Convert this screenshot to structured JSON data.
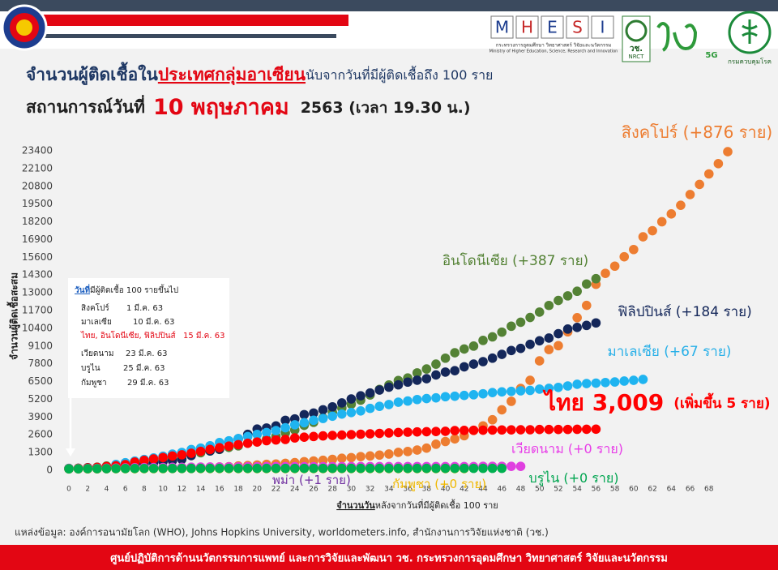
{
  "header": {
    "mhesi_letters": [
      "M",
      "H",
      "E",
      "S",
      "I"
    ],
    "mhesi_th": "กระทรวงการอุดมศึกษา วิทยาศาสตร์ วิจัยและนวัตกรรม",
    "mhesi_en": "Ministry of Higher Education, Science, Research and Innovation",
    "nrct_th": "วช.",
    "nrct_en": "NRCT",
    "fiveg": "5G",
    "ddc": "กรมควบคุมโรค"
  },
  "chart_data": {
    "type": "scatter",
    "title_parts": [
      "จำนวนผู้ติดเชื้อใน",
      "ประเทศกลุ่มอาเซียน",
      "นับจากวันที่มีผู้ติดเชื้อถึง 100 ราย"
    ],
    "subtitle_parts": [
      "สถานการณ์วันที่",
      "10 พฤษภาคม",
      "2563  (เวลา 19.30 น.)"
    ],
    "ylabel": "จำนวนผู้ติดเชื้อสะสม",
    "xlabel_parts": [
      "จำนวนวัน",
      "หลังจากวันที่มีผู้ติดเชื้อ 100 ราย"
    ],
    "x": [
      0,
      1,
      2,
      3,
      4,
      5,
      6,
      7,
      8,
      9,
      10,
      11,
      12,
      13,
      14,
      15,
      16,
      17,
      18,
      19,
      20,
      21,
      22,
      23,
      24,
      25,
      26,
      27,
      28,
      29,
      30,
      31,
      32,
      33,
      34,
      35,
      36,
      37,
      38,
      39,
      40,
      41,
      42,
      43,
      44,
      45,
      46,
      47,
      48,
      49,
      50,
      51,
      52,
      53,
      54,
      55,
      56,
      57,
      58,
      59,
      60,
      61,
      62,
      63,
      64,
      65,
      66,
      67,
      68,
      69,
      70
    ],
    "xlim": [
      0,
      70
    ],
    "xticks": [
      0,
      2,
      4,
      6,
      8,
      10,
      12,
      14,
      16,
      18,
      20,
      22,
      24,
      26,
      28,
      30,
      32,
      34,
      36,
      38,
      40,
      42,
      44,
      46,
      48,
      50,
      52,
      54,
      56,
      58,
      60,
      62,
      64,
      66,
      68
    ],
    "ylim": [
      0,
      23400
    ],
    "yticks": [
      0,
      1300,
      2600,
      3900,
      5200,
      6500,
      7800,
      9100,
      10400,
      11700,
      13000,
      14300,
      15600,
      16900,
      18200,
      19500,
      20800,
      22100,
      23400
    ],
    "grid": false,
    "series": [
      {
        "name": "สิงคโปร์ (+876 ราย)",
        "color": "#ed7d31",
        "values": [
          100,
          102,
          106,
          110,
          117,
          130,
          138,
          148,
          150,
          160,
          166,
          178,
          187,
          200,
          212,
          226,
          243,
          266,
          313,
          345,
          385,
          432,
          455,
          509,
          558,
          631,
          683,
          732,
          802,
          879,
          926,
          1000,
          1049,
          1114,
          1189,
          1309,
          1375,
          1481,
          1623,
          1910,
          2108,
          2299,
          2532,
          2918,
          3252,
          3699,
          4427,
          5050,
          5992,
          6588,
          8014,
          8842,
          9125,
          10141,
          11178,
          12075,
          13624,
          14423,
          14951,
          15641,
          16169,
          17101,
          17548,
          18205,
          18778,
          19410,
          20198,
          20939,
          21707,
          22460,
          23336
        ]
      },
      {
        "name": "อินโดนีเซีย (+387 ราย)",
        "color": "#548235",
        "values": [
          117,
          134,
          172,
          227,
          309,
          369,
          450,
          514,
          579,
          686,
          790,
          893,
          1046,
          1155,
          1285,
          1414,
          1528,
          1677,
          1790,
          1986,
          2092,
          2273,
          2491,
          2738,
          2956,
          3293,
          3512,
          3842,
          4241,
          4557,
          4839,
          5136,
          5516,
          5923,
          6248,
          6575,
          6760,
          7135,
          7418,
          7775,
          8211,
          8607,
          8882,
          9096,
          9511,
          9771,
          10118,
          10551,
          10843,
          11192,
          11587,
          12071,
          12438,
          12776,
          13112,
          13645,
          14032,
          null,
          null,
          null,
          null,
          null,
          null,
          null,
          null,
          null,
          null,
          null,
          null,
          null,
          null
        ]
      },
      {
        "name": "ฟิลิปปินส์ (+184 ราย)",
        "color": "#14275a",
        "values": [
          140,
          142,
          187,
          202,
          217,
          230,
          307,
          380,
          462,
          552,
          636,
          707,
          803,
          1075,
          1418,
          1418,
          1546,
          2084,
          2311,
          2633,
          3018,
          3094,
          3246,
          3660,
          3764,
          4076,
          4195,
          4428,
          4648,
          4932,
          5223,
          5453,
          5660,
          5878,
          6087,
          6259,
          6459,
          6599,
          6710,
          6981,
          7192,
          7294,
          7579,
          7777,
          7958,
          8212,
          8488,
          8772,
          8928,
          9223,
          9485,
          9684,
          10004,
          10343,
          10463,
          10610,
          10794,
          null,
          null,
          null,
          null,
          null,
          null,
          null,
          null,
          null,
          null,
          null,
          null,
          null,
          null
        ]
      },
      {
        "name": "มาเลเซีย (+67 ราย)",
        "color": "#1fb4f0",
        "values": [
          129,
          149,
          149,
          197,
          238,
          428,
          553,
          673,
          790,
          900,
          1030,
          1183,
          1306,
          1518,
          1624,
          1796,
          2031,
          2161,
          2320,
          2470,
          2626,
          2766,
          2908,
          3116,
          3333,
          3483,
          3662,
          3793,
          3963,
          4119,
          4228,
          4346,
          4530,
          4683,
          4817,
          4987,
          5072,
          5182,
          5251,
          5305,
          5389,
          5425,
          5482,
          5532,
          5603,
          5691,
          5742,
          5780,
          5820,
          5851,
          5945,
          6002,
          6071,
          6176,
          6298,
          6353,
          6383,
          6428,
          6467,
          6535,
          6589,
          6656,
          null,
          null,
          null,
          null,
          null,
          null,
          null,
          null,
          null
        ]
      },
      {
        "name": "ไทย 3,009",
        "note": "(เพิ่มขึ้น 5 ราย)",
        "color": "#ff0000",
        "values": [
          114,
          147,
          177,
          212,
          272,
          322,
          411,
          599,
          721,
          827,
          934,
          1045,
          1136,
          1245,
          1388,
          1524,
          1651,
          1771,
          1875,
          1978,
          2067,
          2169,
          2220,
          2258,
          2369,
          2423,
          2473,
          2518,
          2551,
          2579,
          2613,
          2643,
          2672,
          2700,
          2733,
          2765,
          2792,
          2811,
          2826,
          2839,
          2854,
          2907,
          2922,
          2931,
          2938,
          2947,
          2954,
          2960,
          2966,
          2969,
          2987,
          2988,
          2989,
          2992,
          3000,
          3004,
          3009,
          null,
          null,
          null,
          null,
          null,
          null,
          null,
          null,
          null,
          null,
          null,
          null,
          null,
          null
        ]
      },
      {
        "name": "พม่า (+1 ราย)",
        "color": "#7030a0",
        "values": [
          110,
          111,
          119,
          121,
          127,
          139,
          141,
          144,
          144,
          145,
          146,
          146,
          150,
          151,
          151,
          151,
          151,
          155,
          161,
          162,
          171,
          176,
          176,
          177,
          178,
          178,
          179,
          180,
          null,
          null,
          null,
          null,
          null,
          null,
          null,
          null,
          null,
          null,
          null,
          null,
          null,
          null,
          null,
          null,
          null,
          null,
          null,
          null,
          null,
          null,
          null,
          null,
          null,
          null,
          null,
          null,
          null,
          null,
          null,
          null,
          null,
          null,
          null,
          null,
          null,
          null,
          null,
          null,
          null,
          null,
          null
        ]
      },
      {
        "name": "เวียดนาม (+0 ราย)",
        "color": "#e040e0",
        "values": [
          113,
          123,
          134,
          141,
          153,
          163,
          174,
          188,
          194,
          203,
          207,
          218,
          222,
          227,
          237,
          240,
          245,
          249,
          251,
          255,
          257,
          262,
          265,
          266,
          267,
          268,
          268,
          268,
          268,
          270,
          270,
          270,
          270,
          270,
          270,
          270,
          271,
          271,
          271,
          271,
          271,
          271,
          271,
          271,
          288,
          288,
          288,
          288,
          288,
          null,
          null,
          null,
          null,
          null,
          null,
          null,
          null,
          null,
          null,
          null,
          null,
          null,
          null,
          null,
          null,
          null,
          null,
          null,
          null,
          null,
          null
        ]
      },
      {
        "name": "กัมพูชา (+0 ราย)",
        "color": "#ffc000",
        "values": [
          103,
          107,
          109,
          109,
          114,
          114,
          115,
          117,
          119,
          119,
          120,
          122,
          122,
          122,
          122,
          122,
          122,
          122,
          122,
          122,
          122,
          122,
          122,
          122,
          122,
          122,
          122,
          122,
          122,
          122,
          122,
          122,
          122,
          122,
          122,
          122,
          122,
          122,
          122,
          122,
          122,
          122,
          122,
          null,
          null,
          null,
          null,
          null,
          null,
          null,
          null,
          null,
          null,
          null,
          null,
          null,
          null,
          null,
          null,
          null,
          null,
          null,
          null,
          null,
          null,
          null,
          null,
          null,
          null,
          null,
          null
        ]
      },
      {
        "name": "บรูไน (+0 ราย)",
        "color": "#00b050",
        "values": [
          104,
          109,
          114,
          115,
          120,
          126,
          127,
          129,
          131,
          133,
          134,
          135,
          135,
          135,
          136,
          136,
          136,
          136,
          136,
          136,
          137,
          137,
          138,
          138,
          138,
          138,
          138,
          138,
          138,
          138,
          138,
          138,
          138,
          138,
          138,
          138,
          138,
          138,
          138,
          138,
          138,
          138,
          141,
          141,
          141,
          141,
          141,
          null,
          null,
          null,
          null,
          null,
          null,
          null,
          null,
          null,
          null,
          null,
          null,
          null,
          null,
          null,
          null,
          null,
          null,
          null,
          null,
          null,
          null,
          null,
          null
        ]
      }
    ],
    "first_100_box": {
      "title_parts": [
        "วันที่",
        "มีผู้ติดเชื้อ 100 รายขึ้นไป"
      ],
      "rows": [
        {
          "countries": "สิงคโปร์",
          "date": "1 มี.ค. 63"
        },
        {
          "countries": "มาเลเซีย",
          "date": "10 มี.ค. 63"
        },
        {
          "countries": "ไทย, อินโดนีเซีย, ฟิลิปปินส์",
          "date": "15 มี.ค. 63"
        },
        {
          "countries": "เวียดนาม",
          "date": "23 มี.ค. 63"
        },
        {
          "countries": "บรูไน",
          "date": "25 มี.ค. 63"
        },
        {
          "countries": "กัมพูชา",
          "date": "29 มี.ค. 63"
        }
      ]
    },
    "source": "แหล่งข้อมูล: องค์การอนามัยโลก (WHO), Johns Hopkins University, worldometers.info, สำนักงานการวิจัยแห่งชาติ (วช.)"
  },
  "footer": "ศูนย์ปฏิบัติการด้านนวัตกรรมการแพทย์ และการวิจัยและพัฒนา  วช.  กระทรวงการอุดมศึกษา วิทยาศาสตร์ วิจัยและนวัตกรรม"
}
